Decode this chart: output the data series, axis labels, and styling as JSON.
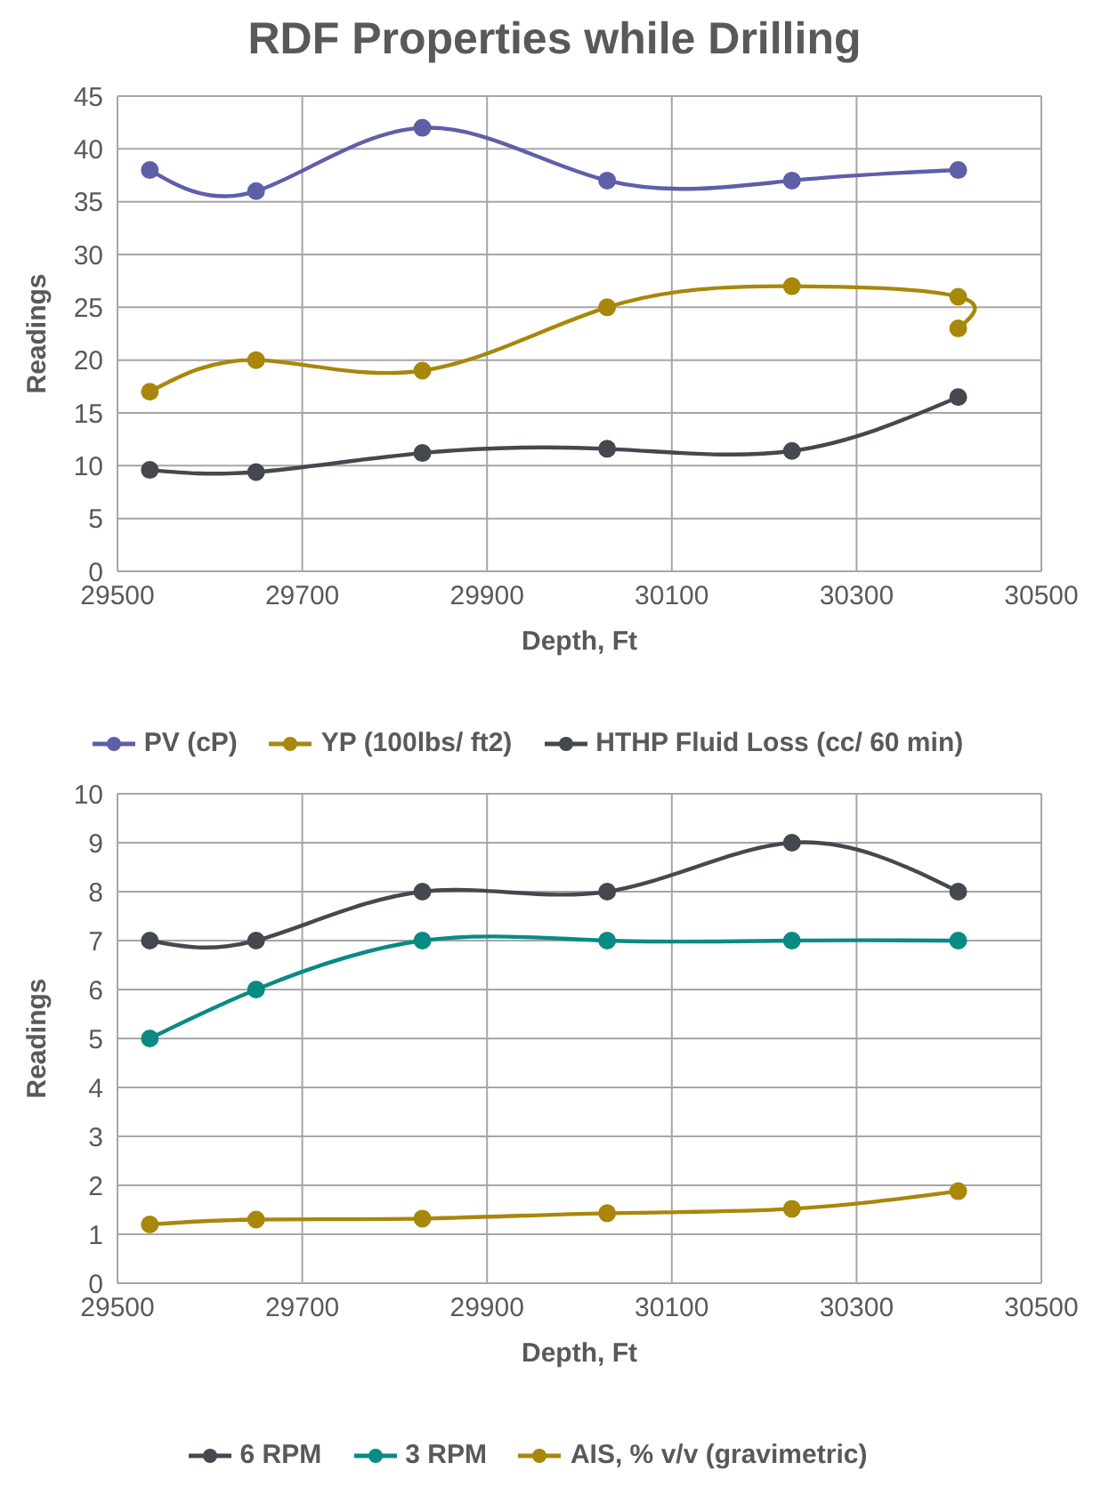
{
  "chart_data": [
    {
      "type": "line",
      "title": "RDF Properties while Drilling",
      "xlabel": "Depth, Ft",
      "ylabel": "Readings",
      "xlim": [
        29500,
        30500
      ],
      "xticks": [
        29500,
        29700,
        29900,
        30100,
        30300,
        30500
      ],
      "ylim": [
        0,
        45
      ],
      "yticks": [
        0,
        5,
        10,
        15,
        20,
        25,
        30,
        35,
        40,
        45
      ],
      "grid": true,
      "legend": "bottom",
      "marker": "circle",
      "line_style": "solid",
      "series": [
        {
          "name": "PV (cP)",
          "color": "#5f5ea8",
          "x": [
            29535,
            29650,
            29830,
            30030,
            30230,
            30410
          ],
          "values": [
            38,
            36,
            42,
            37,
            37,
            38
          ]
        },
        {
          "name": "YP (100lbs/ ft2)",
          "color": "#a8870a",
          "x": [
            29535,
            29650,
            29830,
            30030,
            30230,
            30410,
            30410
          ],
          "values": [
            17,
            20,
            19,
            25,
            27,
            26,
            23
          ]
        },
        {
          "name": "HTHP Fluid Loss (cc/ 60 min)",
          "color": "#45484f",
          "x": [
            29535,
            29650,
            29830,
            30030,
            30230,
            30410
          ],
          "values": [
            9.6,
            9.4,
            11.2,
            11.6,
            11.4,
            16.5
          ]
        }
      ]
    },
    {
      "type": "line",
      "xlabel": "Depth, Ft",
      "ylabel": "Readings",
      "xlim": [
        29500,
        30500
      ],
      "xticks": [
        29500,
        29700,
        29900,
        30100,
        30300,
        30500
      ],
      "ylim": [
        0,
        10
      ],
      "yticks": [
        0,
        1,
        2,
        3,
        4,
        5,
        6,
        7,
        8,
        9,
        10
      ],
      "grid": true,
      "legend": "bottom",
      "marker": "circle",
      "line_style": "solid",
      "series": [
        {
          "name": "6 RPM",
          "color": "#45484f",
          "x": [
            29535,
            29650,
            29830,
            30030,
            30230,
            30410
          ],
          "values": [
            7,
            7,
            8,
            8,
            9,
            8
          ]
        },
        {
          "name": "3 RPM",
          "color": "#0a8a85",
          "x": [
            29535,
            29650,
            29830,
            30030,
            30230,
            30410
          ],
          "values": [
            5,
            6,
            7,
            7,
            7,
            7
          ]
        },
        {
          "name": "AIS, % v/v (gravimetric)",
          "color": "#a8870a",
          "x": [
            29535,
            29650,
            29830,
            30030,
            30230,
            30410
          ],
          "values": [
            1.2,
            1.3,
            1.32,
            1.43,
            1.52,
            1.88
          ]
        }
      ]
    }
  ]
}
